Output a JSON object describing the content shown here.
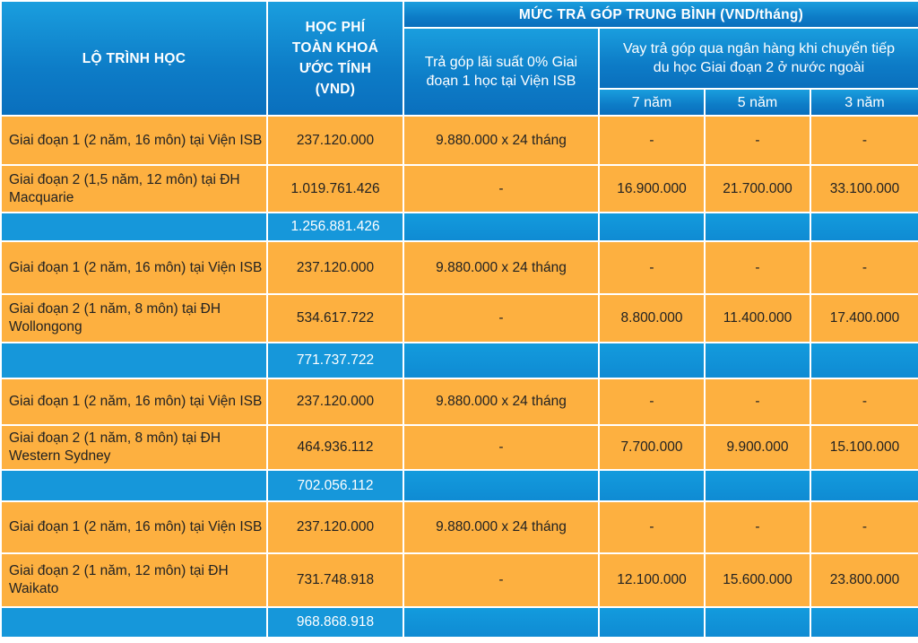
{
  "header": {
    "route": "LỘ TRÌNH HỌC",
    "fee": "HỌC PHÍ TOÀN KHOÁ ƯỚC TÍNH (VND)",
    "installment": "MỨC TRẢ GÓP TRUNG BÌNH (VND/tháng)",
    "zero_interest": "Trả góp lãi suất 0% Giai đoạn 1 học tại Viện ISB",
    "bank_loan": "Vay trả góp qua ngân hàng khi chuyển tiếp du học Giai đoạn 2 ở nước ngoài",
    "years": [
      "7 năm",
      "5 năm",
      "3 năm"
    ]
  },
  "groups": [
    {
      "rows": [
        {
          "name": "Giai đoạn 1 (2 năm, 16 môn) tại Viện ISB",
          "fee": "237.120.000",
          "zero": "9.880.000 x 24 tháng",
          "y7": "-",
          "y5": "-",
          "y3": "-"
        },
        {
          "name": "Giai đoạn 2 (1,5 năm, 12 môn) tại ĐH Macquarie",
          "fee": "1.019.761.426",
          "zero": "-",
          "y7": "16.900.000",
          "y5": "21.700.000",
          "y3": "33.100.000"
        }
      ],
      "total": "1.256.881.426"
    },
    {
      "rows": [
        {
          "name": "Giai đoạn 1 (2 năm, 16 môn) tại Viện ISB",
          "fee": "237.120.000",
          "zero": "9.880.000 x 24 tháng",
          "y7": "-",
          "y5": "-",
          "y3": "-"
        },
        {
          "name": "Giai đoạn 2 (1 năm, 8 môn) tại ĐH Wollongong",
          "fee": "534.617.722",
          "zero": "-",
          "y7": "8.800.000",
          "y5": "11.400.000",
          "y3": "17.400.000"
        }
      ],
      "total": "771.737.722"
    },
    {
      "rows": [
        {
          "name": "Giai đoạn 1 (2 năm, 16 môn) tại Viện ISB",
          "fee": "237.120.000",
          "zero": "9.880.000 x 24 tháng",
          "y7": "-",
          "y5": "-",
          "y3": "-"
        },
        {
          "name": "Giai đoạn 2 (1 năm, 8 môn) tại ĐH Western Sydney",
          "fee": "464.936.112",
          "zero": "-",
          "y7": "7.700.000",
          "y5": "9.900.000",
          "y3": "15.100.000"
        }
      ],
      "total": "702.056.112"
    },
    {
      "rows": [
        {
          "name": "Giai đoạn 1 (2 năm, 16 môn) tại Viện ISB",
          "fee": "237.120.000",
          "zero": "9.880.000 x 24 tháng",
          "y7": "-",
          "y5": "-",
          "y3": "-"
        },
        {
          "name": "Giai đoạn 2 (1 năm, 12 môn) tại ĐH Waikato",
          "fee": "731.748.918",
          "zero": "-",
          "y7": "12.100.000",
          "y5": "15.600.000",
          "y3": "23.800.000"
        }
      ],
      "total": "968.868.918"
    }
  ],
  "colors": {
    "header_blue": "#0d7cc7",
    "total_blue": "#1697da",
    "stage_orange": "#fdb040"
  }
}
